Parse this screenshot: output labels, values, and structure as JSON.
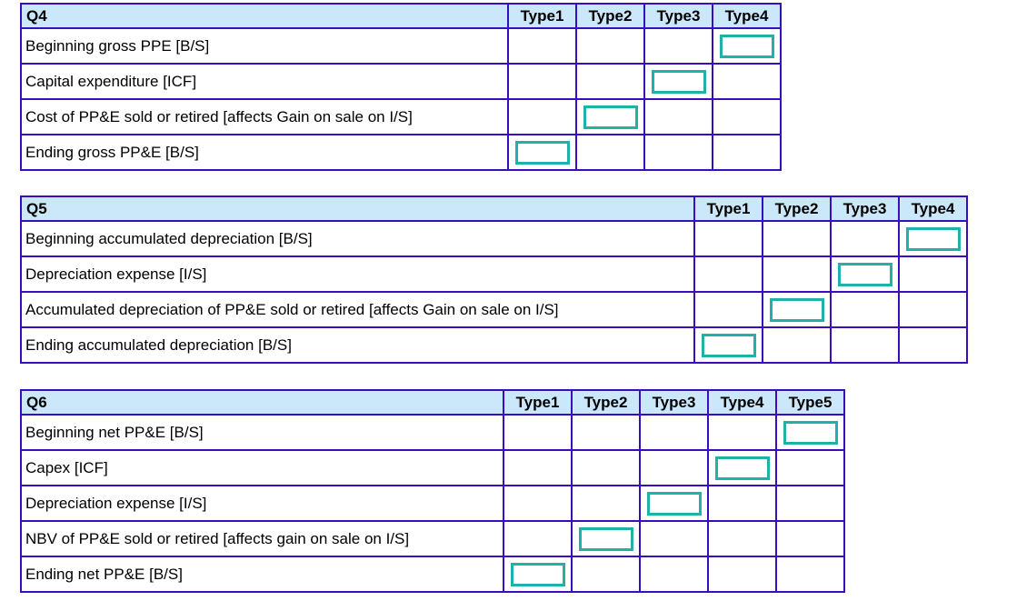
{
  "colors": {
    "table_border": "#3a0dbe",
    "header_background": "#cbe8fa",
    "answer_box_border": "#20b2aa",
    "text": "#000000",
    "page_background": "#ffffff"
  },
  "tables": [
    {
      "id": "Q4",
      "title": "Q4",
      "type_columns": [
        "Type1",
        "Type2",
        "Type3",
        "Type4"
      ],
      "rows": [
        {
          "label": "Beginning gross PPE [B/S]",
          "selected": "Type4"
        },
        {
          "label": "Capital expenditure [ICF]",
          "selected": "Type3"
        },
        {
          "label": "Cost of PP&E sold or retired [affects Gain on sale on I/S]",
          "selected": "Type2"
        },
        {
          "label": "Ending gross PP&E [B/S]",
          "selected": "Type1"
        }
      ]
    },
    {
      "id": "Q5",
      "title": "Q5",
      "type_columns": [
        "Type1",
        "Type2",
        "Type3",
        "Type4"
      ],
      "rows": [
        {
          "label": "Beginning accumulated depreciation [B/S]",
          "selected": "Type4"
        },
        {
          "label": "Depreciation expense [I/S]",
          "selected": "Type3"
        },
        {
          "label": "Accumulated depreciation of PP&E sold or retired [affects Gain on sale on I/S]",
          "selected": "Type2"
        },
        {
          "label": "Ending accumulated depreciation [B/S]",
          "selected": "Type1"
        }
      ]
    },
    {
      "id": "Q6",
      "title": "Q6",
      "type_columns": [
        "Type1",
        "Type2",
        "Type3",
        "Type4",
        "Type5"
      ],
      "rows": [
        {
          "label": "Beginning net PP&E [B/S]",
          "selected": "Type5"
        },
        {
          "label": "Capex [ICF]",
          "selected": "Type4"
        },
        {
          "label": "Depreciation expense [I/S]",
          "selected": "Type3"
        },
        {
          "label": "NBV of PP&E sold or retired [affects gain on sale on I/S]",
          "selected": "Type2"
        },
        {
          "label": "Ending net PP&E [B/S]",
          "selected": "Type1"
        }
      ]
    }
  ]
}
